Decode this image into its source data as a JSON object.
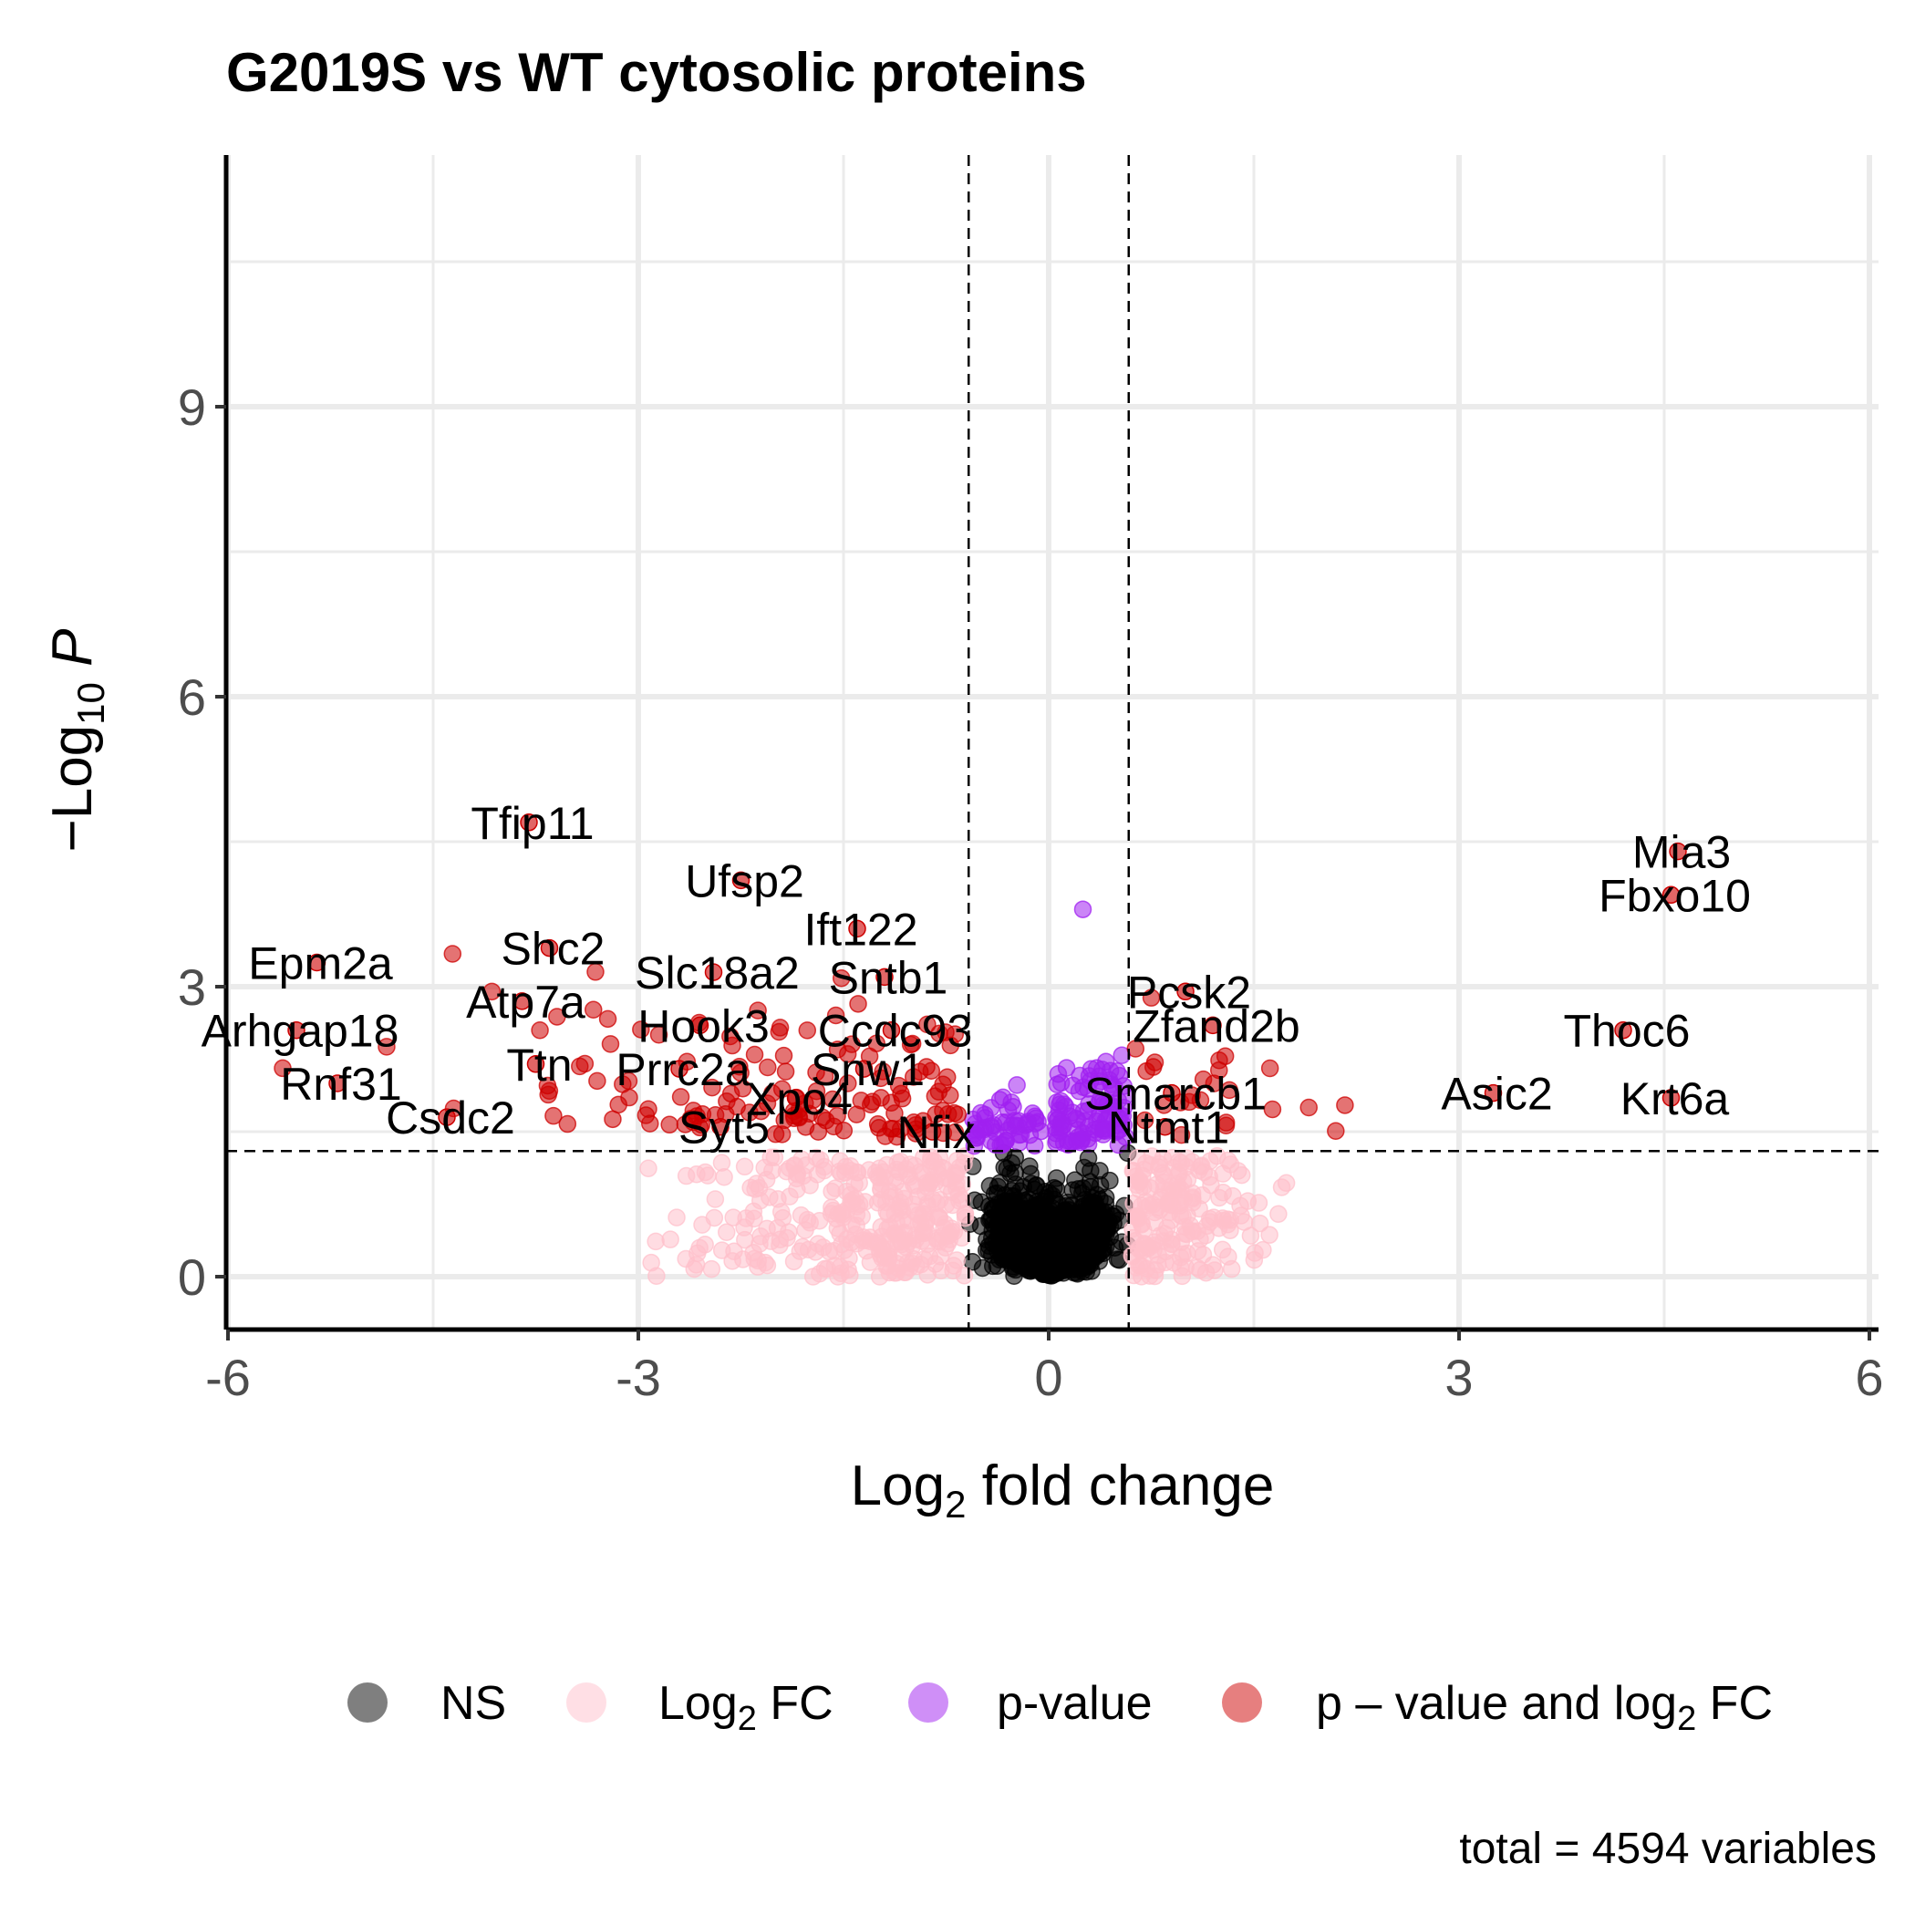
{
  "chart_data": {
    "type": "scatter",
    "title": "G2019S vs WT cytosolic proteins",
    "xlabel": {
      "base": "Log",
      "sub": "2",
      "rest": " fold change"
    },
    "ylabel": {
      "pre": "−Log",
      "sub": "10",
      "post": " P"
    },
    "xlim": [
      -6,
      6
    ],
    "ylim": [
      -0.4,
      11.5
    ],
    "xticks": [
      -6,
      -3,
      0,
      3,
      6
    ],
    "xtick_labels": [
      "-6",
      "-3",
      "0",
      "3",
      "6"
    ],
    "yticks": [
      0,
      3,
      6,
      9
    ],
    "ytick_labels": [
      "0",
      "3",
      "6",
      "9"
    ],
    "fc_cutoff": 0.585,
    "p_cutoff_log": 1.3,
    "grid": true,
    "legend_position": "bottom",
    "colors": {
      "NS": "#000000",
      "FC": "#ffc0cb",
      "P": "#a020f0",
      "both": "#cd0000"
    },
    "legend": [
      {
        "key": "NS",
        "color": "#000000",
        "label": "NS"
      },
      {
        "key": "FC",
        "color": "#ffc0cb",
        "label_base": "Log",
        "label_sub": "2",
        "label_rest": " FC"
      },
      {
        "key": "P",
        "color": "#a020f0",
        "label": "p-value"
      },
      {
        "key": "both",
        "color": "#cd0000",
        "label_base": "p – value and log",
        "label_sub": "2",
        "label_rest": " FC"
      }
    ],
    "caption": "total = 4594 variables",
    "labeled_points": [
      {
        "label": "Tfip11",
        "x": -3.8,
        "y": 4.7
      },
      {
        "label": "Ufsp2",
        "x": -2.25,
        "y": 4.1
      },
      {
        "label": "Ift122",
        "x": -1.4,
        "y": 3.6
      },
      {
        "label": "Shc2",
        "x": -3.65,
        "y": 3.4
      },
      {
        "label": "Epm2a",
        "x": -5.35,
        "y": 3.25
      },
      {
        "label": "Slc18a2",
        "x": -2.45,
        "y": 3.15
      },
      {
        "label": "Sntb1",
        "x": -1.2,
        "y": 3.1
      },
      {
        "label": "Atp7a",
        "x": -3.85,
        "y": 2.85
      },
      {
        "label": "Hook3",
        "x": -2.55,
        "y": 2.6
      },
      {
        "label": "Ccdc93",
        "x": -1.15,
        "y": 2.55
      },
      {
        "label": "Arhgap18",
        "x": -5.5,
        "y": 2.55
      },
      {
        "label": "Ttn",
        "x": -3.75,
        "y": 2.2
      },
      {
        "label": "Prrc2a",
        "x": -2.7,
        "y": 2.15
      },
      {
        "label": "Snw1",
        "x": -1.35,
        "y": 2.15
      },
      {
        "label": "Rnf31",
        "x": -5.2,
        "y": 2.0
      },
      {
        "label": "Xpo4",
        "x": -1.85,
        "y": 1.85
      },
      {
        "label": "Csdc2",
        "x": -4.4,
        "y": 1.65
      },
      {
        "label": "Syt5",
        "x": -2.4,
        "y": 1.55
      },
      {
        "label": "Nfix",
        "x": -0.85,
        "y": 1.5
      },
      {
        "label": "Pcsk2",
        "x": 1.0,
        "y": 2.95
      },
      {
        "label": "Zfand2b",
        "x": 1.2,
        "y": 2.6
      },
      {
        "label": "Smarcb1",
        "x": 0.9,
        "y": 1.9
      },
      {
        "label": "Ntmt1",
        "x": 0.85,
        "y": 1.55
      },
      {
        "label": "Mia3",
        "x": 4.6,
        "y": 4.4
      },
      {
        "label": "Fbxo10",
        "x": 4.55,
        "y": 3.95
      },
      {
        "label": "Thoc6",
        "x": 4.2,
        "y": 2.55
      },
      {
        "label": "Asic2",
        "x": 3.25,
        "y": 1.9
      },
      {
        "label": "Krt6a",
        "x": 4.55,
        "y": 1.85
      }
    ]
  }
}
